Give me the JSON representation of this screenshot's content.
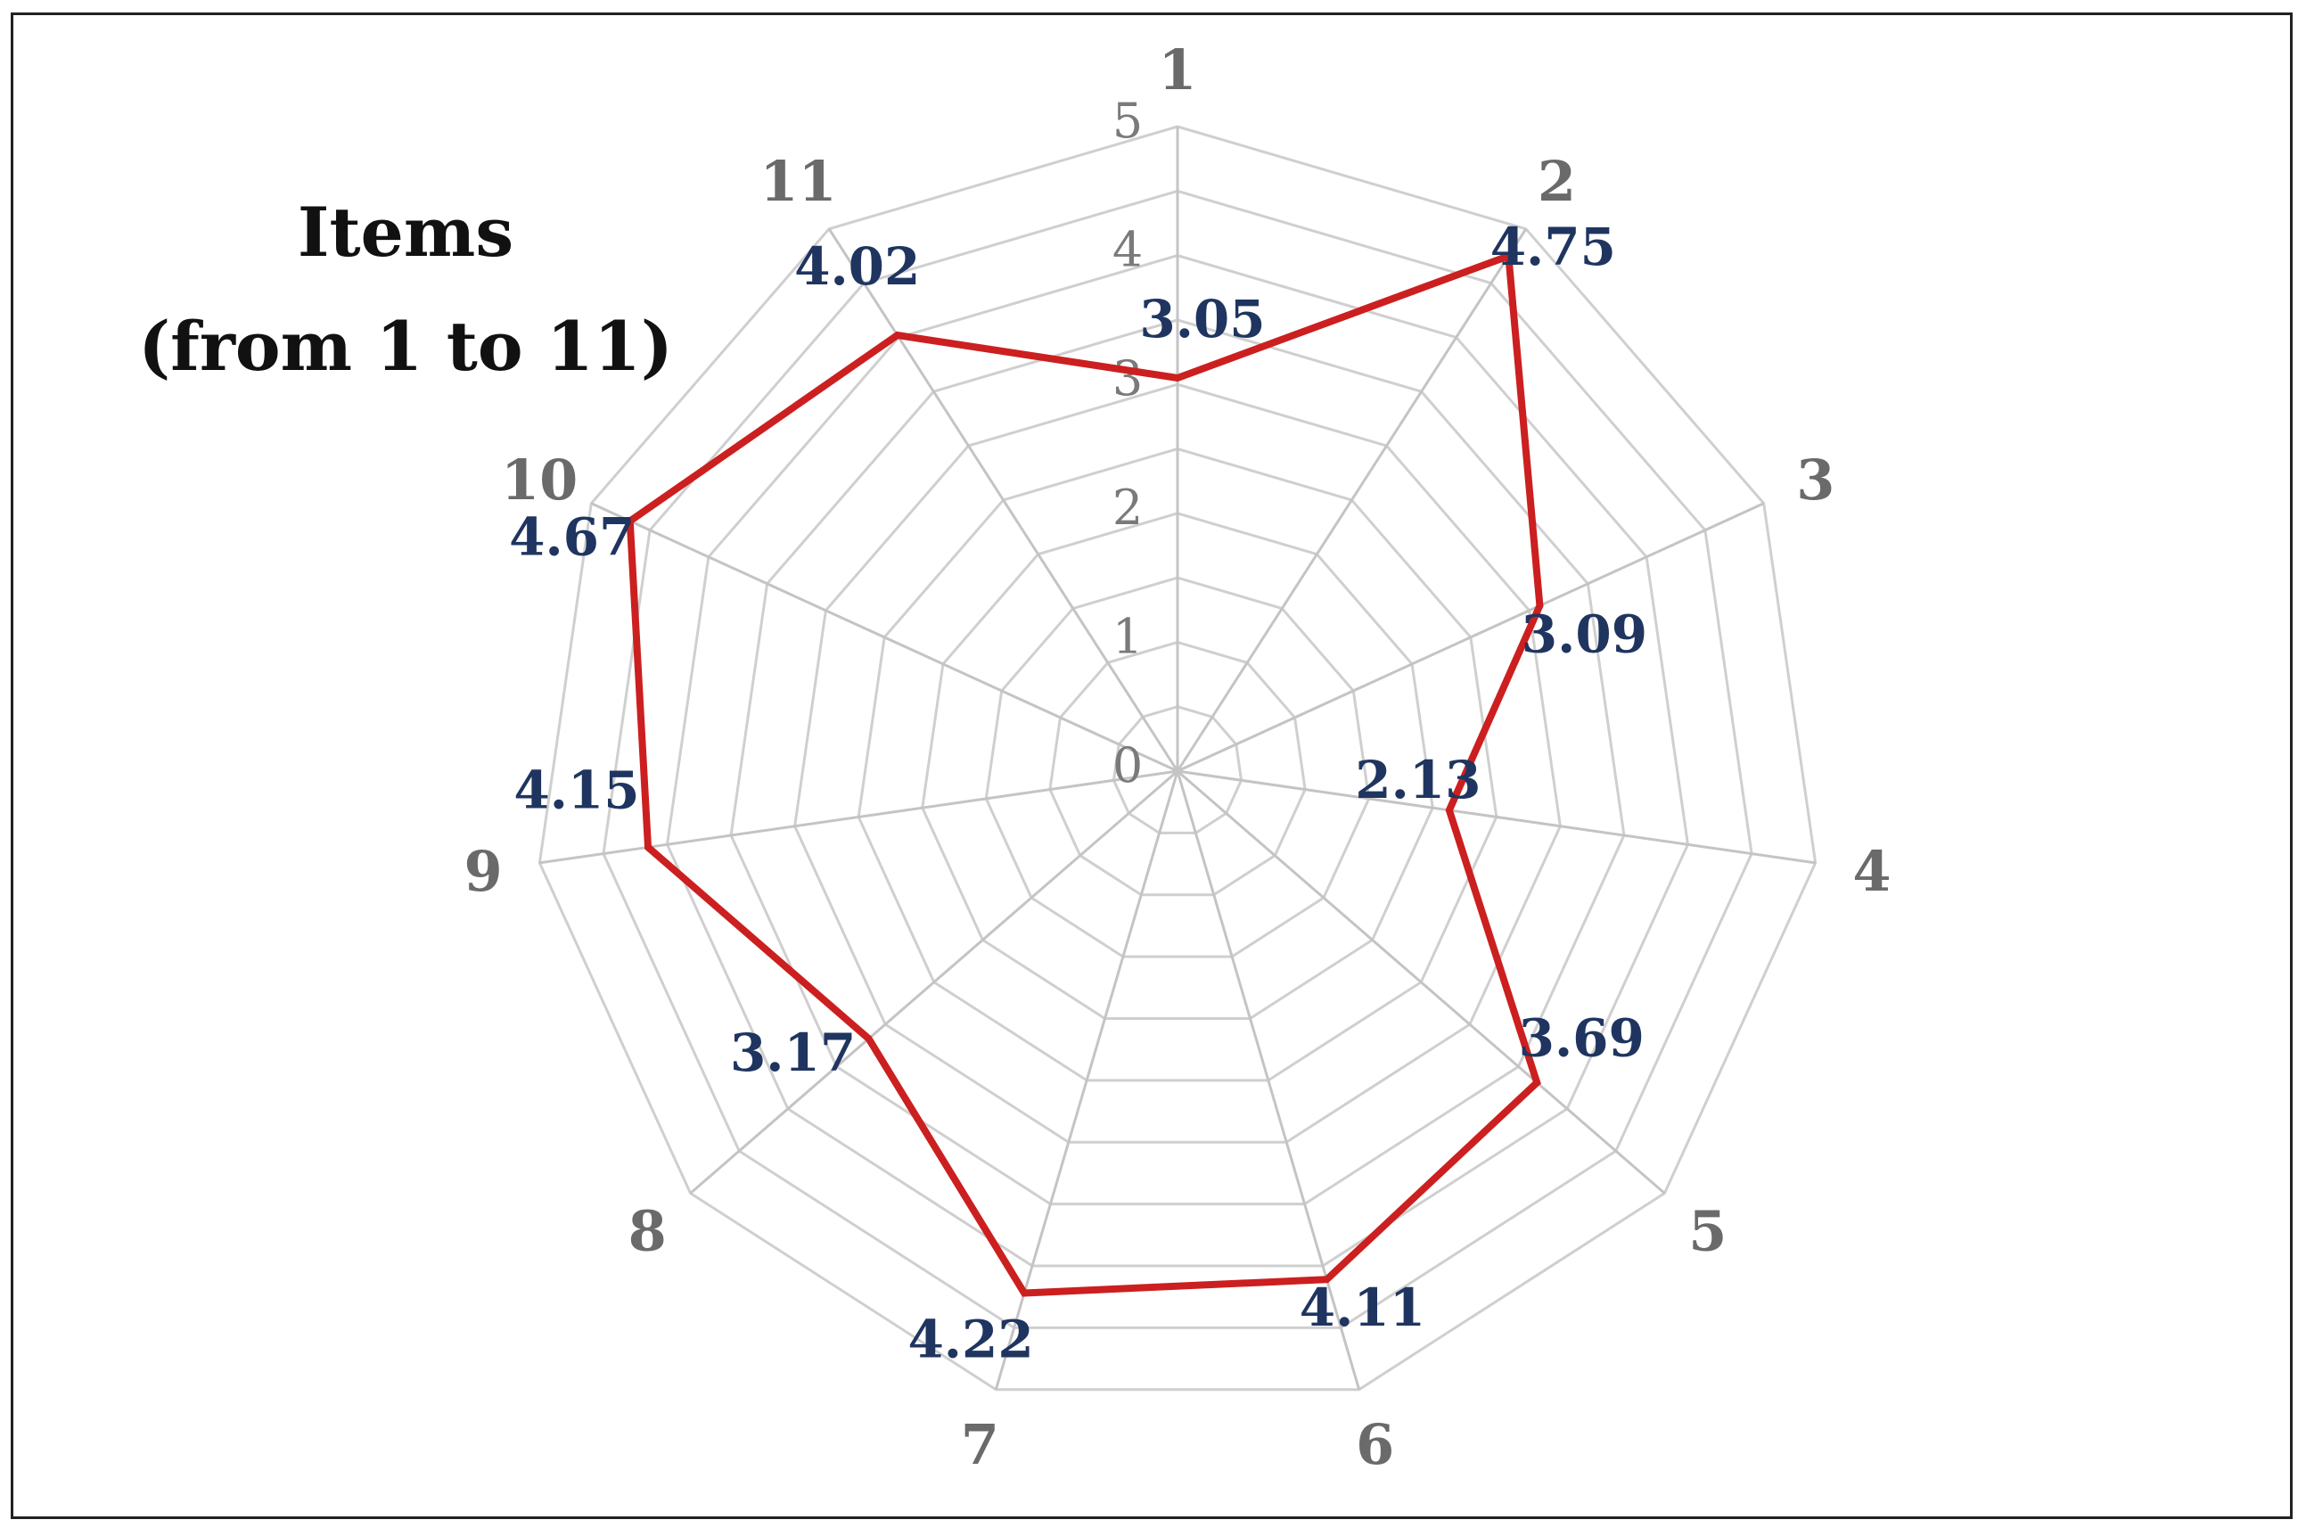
{
  "chart_data": {
    "type": "radar",
    "title": [
      "Items",
      "(from 1 to 11)"
    ],
    "categories": [
      "1",
      "2",
      "3",
      "4",
      "5",
      "6",
      "7",
      "8",
      "9",
      "10",
      "11"
    ],
    "series": [
      {
        "values": [
          3.05,
          4.75,
          3.09,
          2.13,
          3.69,
          4.11,
          4.22,
          3.17,
          4.15,
          4.67,
          4.02
        ],
        "color": "#cc1f1f"
      }
    ],
    "r_ticks": [
      "0",
      "1",
      "2",
      "3",
      "4",
      "5"
    ],
    "r_range": [
      0,
      5
    ],
    "grid": true,
    "data_label_color": "#1f3560"
  }
}
